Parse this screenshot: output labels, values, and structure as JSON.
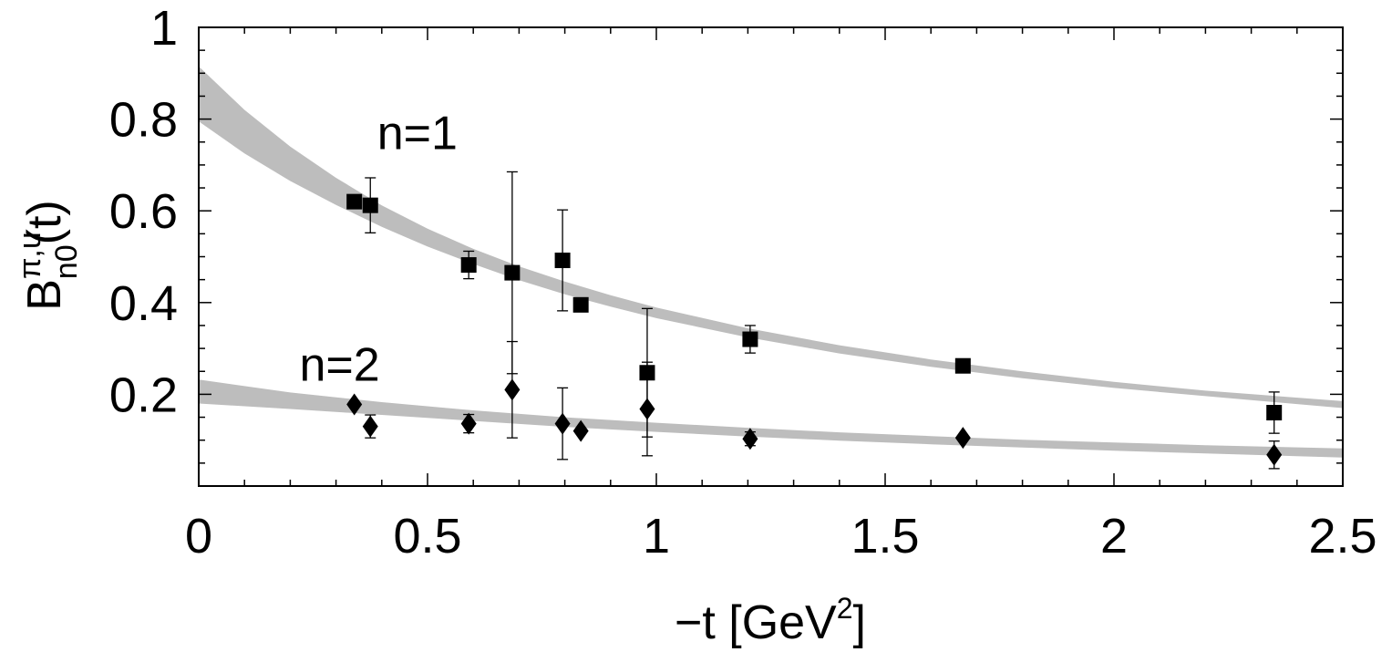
{
  "chart_data": {
    "type": "scatter",
    "title": "",
    "xlabel": {
      "main": "−t [GeV",
      "sup": "2",
      "close": "]"
    },
    "ylabel": {
      "base": "B",
      "sup": "π,u",
      "sub": "n0",
      "suffix": "(t)"
    },
    "xlim": [
      0,
      2.5
    ],
    "ylim": [
      0,
      1
    ],
    "x_ticks": [
      0,
      0.5,
      1,
      1.5,
      2,
      2.5
    ],
    "x_tick_labels": [
      "0",
      "0.5",
      "1",
      "1.5",
      "2",
      "2.5"
    ],
    "y_ticks": [
      0.2,
      0.4,
      0.6,
      0.8,
      1
    ],
    "y_tick_labels": [
      "0.2",
      "0.4",
      "0.6",
      "0.8",
      "1"
    ],
    "grid": false,
    "annotations": [
      {
        "name": "n1-label",
        "text": "n=1",
        "x": 0.39,
        "y": 0.735
      },
      {
        "name": "n2-label",
        "text": "n=2",
        "x": 0.22,
        "y": 0.23
      }
    ],
    "series": [
      {
        "name": "n=1",
        "marker": "square",
        "points": [
          {
            "x": 0.34,
            "y": 0.62,
            "err": 0.0
          },
          {
            "x": 0.375,
            "y": 0.612,
            "err": 0.06
          },
          {
            "x": 0.59,
            "y": 0.482,
            "err": 0.03
          },
          {
            "x": 0.685,
            "y": 0.465,
            "err": 0.22
          },
          {
            "x": 0.795,
            "y": 0.492,
            "err": 0.11
          },
          {
            "x": 0.835,
            "y": 0.395,
            "err": 0.0
          },
          {
            "x": 0.98,
            "y": 0.247,
            "err": 0.14
          },
          {
            "x": 1.205,
            "y": 0.32,
            "err": 0.03
          },
          {
            "x": 1.67,
            "y": 0.262,
            "err": 0.0
          },
          {
            "x": 2.35,
            "y": 0.16,
            "err": 0.045
          }
        ],
        "band": {
          "t": [
            0,
            0.1,
            0.2,
            0.3,
            0.4,
            0.5,
            0.6,
            0.7,
            0.8,
            0.9,
            1.0,
            1.2,
            1.4,
            1.6,
            1.8,
            2.0,
            2.2,
            2.5
          ],
          "lower": [
            0.795,
            0.725,
            0.665,
            0.613,
            0.565,
            0.522,
            0.484,
            0.449,
            0.418,
            0.391,
            0.366,
            0.324,
            0.289,
            0.26,
            0.235,
            0.214,
            0.196,
            0.17
          ],
          "upper": [
            0.915,
            0.82,
            0.74,
            0.672,
            0.612,
            0.561,
            0.517,
            0.479,
            0.446,
            0.416,
            0.389,
            0.344,
            0.307,
            0.276,
            0.25,
            0.227,
            0.208,
            0.185
          ]
        }
      },
      {
        "name": "n=2",
        "marker": "diamond",
        "points": [
          {
            "x": 0.34,
            "y": 0.178,
            "err": 0.0
          },
          {
            "x": 0.375,
            "y": 0.13,
            "err": 0.025
          },
          {
            "x": 0.59,
            "y": 0.136,
            "err": 0.02
          },
          {
            "x": 0.685,
            "y": 0.21,
            "err": 0.105
          },
          {
            "x": 0.795,
            "y": 0.136,
            "err": 0.078
          },
          {
            "x": 0.835,
            "y": 0.12,
            "err": 0.0
          },
          {
            "x": 0.98,
            "y": 0.168,
            "err": 0.102
          },
          {
            "x": 1.205,
            "y": 0.103,
            "err": 0.015
          },
          {
            "x": 1.67,
            "y": 0.105,
            "err": 0.0
          },
          {
            "x": 2.35,
            "y": 0.068,
            "err": 0.03
          }
        ],
        "band": {
          "t": [
            0,
            0.2,
            0.4,
            0.6,
            0.8,
            1.0,
            1.2,
            1.4,
            1.6,
            1.8,
            2.0,
            2.2,
            2.5
          ],
          "lower": [
            0.18,
            0.168,
            0.155,
            0.142,
            0.129,
            0.118,
            0.108,
            0.099,
            0.091,
            0.084,
            0.077,
            0.071,
            0.062
          ],
          "upper": [
            0.232,
            0.204,
            0.183,
            0.165,
            0.15,
            0.138,
            0.127,
            0.117,
            0.109,
            0.101,
            0.095,
            0.089,
            0.082
          ]
        }
      }
    ]
  }
}
